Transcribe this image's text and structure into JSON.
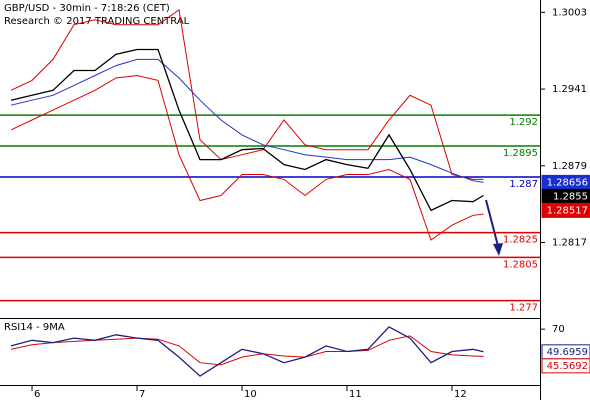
{
  "header": {
    "title": "GBP/USD - 30min - 7:18:26 (CET)",
    "subtitle": "Research © 2017 TRADING CENTRAL"
  },
  "chart_data": [
    {
      "type": "line",
      "x": [
        -0.2,
        0,
        0.2,
        0.4,
        0.6,
        0.8,
        1,
        1.2,
        1.4,
        1.6,
        1.8,
        2,
        2.2,
        2.4,
        2.6,
        2.8,
        3,
        3.2,
        3.4,
        3.6,
        3.8,
        4,
        4.2,
        4.3
      ],
      "xlim": [
        -0.305,
        4.838
      ],
      "ylim": [
        1.2756,
        1.3013
      ],
      "yticks": [
        1.2817,
        1.2879,
        1.2941,
        1.3003
      ],
      "series": [
        {
          "color": "#dd0000",
          "values": [
            1.294,
            1.2948,
            1.2965,
            1.2993,
            1.2997,
            1.2993,
            1.2993,
            1.2993,
            1.3005,
            1.29,
            1.2884,
            1.2888,
            1.2892,
            1.2916,
            1.2896,
            1.2892,
            1.2892,
            1.2892,
            1.2916,
            1.2936,
            1.2928,
            1.2872,
            1.2868,
            1.2868
          ]
        },
        {
          "color": "#dd0000",
          "values": [
            1.2908,
            1.2916,
            1.2924,
            1.2932,
            1.294,
            1.295,
            1.2952,
            1.2948,
            1.2888,
            1.2851,
            1.2855,
            1.2872,
            1.2872,
            1.2868,
            1.2855,
            1.2868,
            1.2872,
            1.2872,
            1.2876,
            1.2868,
            1.2819,
            1.2831,
            1.2839,
            1.284
          ]
        },
        {
          "color": "#2233cc",
          "values": [
            1.2928,
            1.2932,
            1.2936,
            1.2944,
            1.2952,
            1.296,
            1.2965,
            1.2965,
            1.295,
            1.2932,
            1.2916,
            1.2904,
            1.2896,
            1.2892,
            1.2888,
            1.2886,
            1.2884,
            1.2884,
            1.2884,
            1.2886,
            1.288,
            1.2873,
            1.2867,
            1.28656
          ]
        },
        {
          "color": "#000000",
          "values": [
            1.2932,
            1.2936,
            1.294,
            1.2956,
            1.2956,
            1.2969,
            1.2973,
            1.2973,
            1.2924,
            1.2884,
            1.2884,
            1.2892,
            1.2893,
            1.288,
            1.2876,
            1.2884,
            1.288,
            1.2877,
            1.2904,
            1.2876,
            1.2843,
            1.2851,
            1.285,
            1.2855
          ]
        }
      ],
      "levels": [
        {
          "value": 1.292,
          "color": "#008000"
        },
        {
          "value": 1.2895,
          "color": "#008000"
        },
        {
          "value": 1.287,
          "color": "#0000cc"
        },
        {
          "value": 1.2825,
          "color": "#dd0000"
        },
        {
          "value": 1.2805,
          "color": "#dd0000"
        },
        {
          "value": 1.277,
          "color": "#dd0000"
        }
      ],
      "tag_fill": true,
      "tags": [
        {
          "value": 1.28656,
          "color": "#1a2fd0"
        },
        {
          "value": 1.2855,
          "color": "#000000"
        },
        {
          "value": 1.28517,
          "color": "#dd0000"
        }
      ]
    },
    {
      "type": "line",
      "title": "RSI14 - 9MA",
      "x": [
        -0.2,
        0,
        0.2,
        0.4,
        0.6,
        0.8,
        1,
        1.2,
        1.4,
        1.6,
        1.8,
        2,
        2.2,
        2.4,
        2.6,
        2.8,
        3,
        3.2,
        3.4,
        3.6,
        3.8,
        4,
        4.2,
        4.3
      ],
      "xlim": [
        -0.305,
        4.838
      ],
      "xticks": [
        {
          "value": 0,
          "label": "6"
        },
        {
          "value": 1,
          "label": "7"
        },
        {
          "value": 2,
          "label": "10"
        },
        {
          "value": 3,
          "label": "11"
        },
        {
          "value": 4,
          "label": "12"
        }
      ],
      "ylim": [
        20,
        80
      ],
      "yticks": [
        70
      ],
      "series": [
        {
          "color": "#dd0000",
          "values": [
            52,
            56,
            58,
            59,
            60,
            61,
            62,
            61,
            55,
            40,
            38,
            45,
            48,
            46,
            45,
            50,
            50,
            51,
            60,
            64,
            50,
            47,
            46,
            45.5692
          ]
        },
        {
          "color": "#1a2080",
          "values": [
            55,
            60,
            58,
            62,
            60,
            65,
            62,
            60,
            45,
            28,
            40,
            52,
            48,
            40,
            45,
            55,
            50,
            52,
            72,
            62,
            40,
            50,
            52,
            49.6959
          ]
        }
      ],
      "tag_fill": false,
      "tags": [
        {
          "value": 49.6959,
          "color": "#1a2080"
        },
        {
          "value": 45.5692,
          "color": "#dd0000"
        }
      ]
    }
  ]
}
